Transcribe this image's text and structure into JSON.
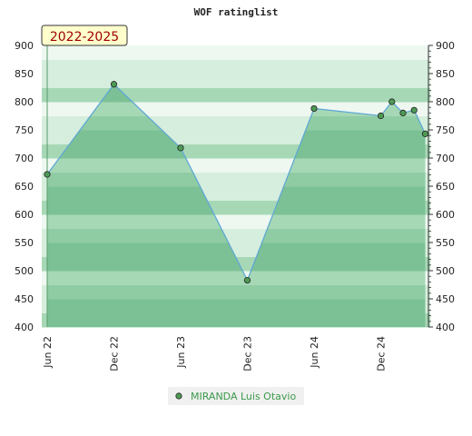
{
  "chart_data": {
    "type": "area",
    "title": "WOF ratinglist",
    "period_label": "2022-2025",
    "xlabel": "",
    "ylabel": "",
    "ylim": [
      400,
      900
    ],
    "yticks": [
      400,
      450,
      500,
      550,
      600,
      650,
      700,
      750,
      800,
      850,
      900
    ],
    "x_ticks": [
      "Jun 22",
      "Dec 22",
      "Jun 23",
      "Dec 23",
      "Jun 24",
      "Dec 24"
    ],
    "series": [
      {
        "name": "MIRANDA Luis Otavio",
        "points": [
          {
            "t": 0,
            "v": 671
          },
          {
            "t": 6,
            "v": 831
          },
          {
            "t": 12,
            "v": 718
          },
          {
            "t": 18,
            "v": 483
          },
          {
            "t": 24,
            "v": 788
          },
          {
            "t": 30,
            "v": 775
          },
          {
            "t": 31,
            "v": 800
          },
          {
            "t": 32,
            "v": 780
          },
          {
            "t": 33,
            "v": 785
          },
          {
            "t": 34,
            "v": 743
          }
        ]
      }
    ],
    "grid": true,
    "legend_position": "bottom-center",
    "colors": {
      "line": "#5fa8d3",
      "marker_fill": "#4f9a55",
      "band_dark": "#7cc196",
      "band_mid": "#a7d8b6",
      "band_light": "#d6eedd",
      "band_lighter": "#eef8f1",
      "badge_fill": "#ffffcc",
      "legend_text": "#3b9a4b"
    }
  }
}
